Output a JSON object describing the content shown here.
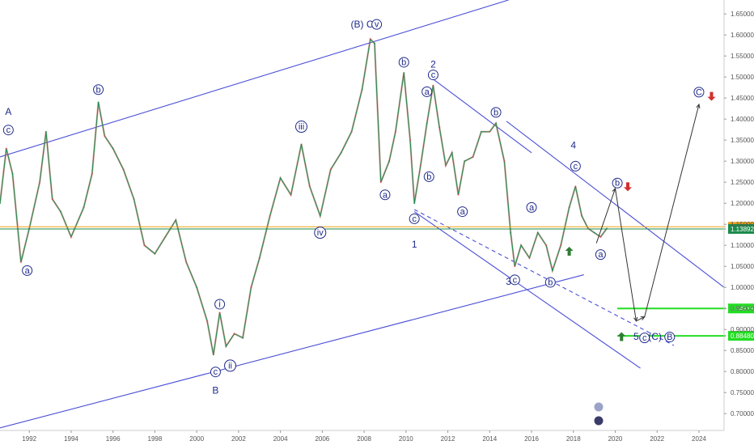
{
  "chart_data": {
    "type": "line",
    "title": "",
    "xlabel": "",
    "ylabel": "",
    "xlim": [
      1990.6,
      2025.2
    ],
    "ylim": [
      0.66,
      1.683
    ],
    "x_ticks": [
      "1992",
      "1994",
      "1996",
      "1998",
      "2000",
      "2002",
      "2004",
      "2006",
      "2008",
      "2010",
      "2012",
      "2014",
      "2016",
      "2018",
      "2020",
      "2022",
      "2024"
    ],
    "y_ticks": [
      "1.65000",
      "1.60000",
      "1.55000",
      "1.50000",
      "1.45000",
      "1.40000",
      "1.35000",
      "1.30000",
      "1.25000",
      "1.20000",
      "1.15000",
      "1.10000",
      "1.05000",
      "1.00000",
      "0.95000",
      "0.90000",
      "0.85000",
      "0.80000",
      "0.75000",
      "0.70000"
    ],
    "price_series": {
      "name": "",
      "points": [
        [
          1990.6,
          1.2
        ],
        [
          1990.9,
          1.33
        ],
        [
          1991.2,
          1.27
        ],
        [
          1991.6,
          1.06
        ],
        [
          1992.0,
          1.14
        ],
        [
          1992.5,
          1.25
        ],
        [
          1992.8,
          1.37
        ],
        [
          1993.1,
          1.21
        ],
        [
          1993.5,
          1.18
        ],
        [
          1994.0,
          1.12
        ],
        [
          1994.6,
          1.19
        ],
        [
          1995.0,
          1.27
        ],
        [
          1995.3,
          1.44
        ],
        [
          1995.6,
          1.36
        ],
        [
          1996.0,
          1.33
        ],
        [
          1996.5,
          1.28
        ],
        [
          1997.0,
          1.21
        ],
        [
          1997.5,
          1.1
        ],
        [
          1998.0,
          1.08
        ],
        [
          1998.5,
          1.12
        ],
        [
          1999.0,
          1.16
        ],
        [
          1999.5,
          1.06
        ],
        [
          2000.0,
          1.0
        ],
        [
          2000.5,
          0.92
        ],
        [
          2000.8,
          0.84
        ],
        [
          2001.1,
          0.94
        ],
        [
          2001.4,
          0.86
        ],
        [
          2001.8,
          0.89
        ],
        [
          2002.2,
          0.88
        ],
        [
          2002.6,
          1.0
        ],
        [
          2003.0,
          1.07
        ],
        [
          2003.5,
          1.17
        ],
        [
          2004.0,
          1.26
        ],
        [
          2004.5,
          1.22
        ],
        [
          2005.0,
          1.34
        ],
        [
          2005.4,
          1.24
        ],
        [
          2005.9,
          1.17
        ],
        [
          2006.4,
          1.28
        ],
        [
          2006.9,
          1.32
        ],
        [
          2007.4,
          1.37
        ],
        [
          2007.9,
          1.47
        ],
        [
          2008.3,
          1.59
        ],
        [
          2008.5,
          1.58
        ],
        [
          2008.8,
          1.25
        ],
        [
          2009.2,
          1.3
        ],
        [
          2009.5,
          1.37
        ],
        [
          2009.9,
          1.51
        ],
        [
          2010.2,
          1.35
        ],
        [
          2010.4,
          1.2
        ],
        [
          2010.7,
          1.29
        ],
        [
          2011.0,
          1.39
        ],
        [
          2011.3,
          1.48
        ],
        [
          2011.6,
          1.38
        ],
        [
          2011.9,
          1.29
        ],
        [
          2012.2,
          1.32
        ],
        [
          2012.5,
          1.22
        ],
        [
          2012.8,
          1.3
        ],
        [
          2013.2,
          1.31
        ],
        [
          2013.6,
          1.37
        ],
        [
          2014.0,
          1.37
        ],
        [
          2014.3,
          1.39
        ],
        [
          2014.7,
          1.3
        ],
        [
          2015.0,
          1.13
        ],
        [
          2015.2,
          1.05
        ],
        [
          2015.5,
          1.1
        ],
        [
          2015.9,
          1.07
        ],
        [
          2016.3,
          1.13
        ],
        [
          2016.7,
          1.1
        ],
        [
          2017.0,
          1.04
        ],
        [
          2017.4,
          1.1
        ],
        [
          2017.8,
          1.19
        ],
        [
          2018.1,
          1.24
        ],
        [
          2018.4,
          1.17
        ],
        [
          2018.7,
          1.14
        ],
        [
          2019.0,
          1.13
        ],
        [
          2019.3,
          1.12
        ],
        [
          2019.6,
          1.14
        ]
      ]
    },
    "trend_lines": [
      {
        "name": "upper-channel",
        "from": [
          1990.6,
          1.31
        ],
        "to": [
          2014.9,
          1.683
        ]
      },
      {
        "name": "lower-channel",
        "from": [
          1990.6,
          0.666
        ],
        "to": [
          2018.5,
          1.03
        ]
      },
      {
        "name": "descending-top",
        "from": [
          2011.3,
          1.495
        ],
        "to": [
          2016.0,
          1.32
        ]
      },
      {
        "name": "descending-mid",
        "from": [
          2014.8,
          1.395
        ],
        "to": [
          2025.2,
          1.0
        ]
      },
      {
        "name": "descending-bottom",
        "from": [
          2010.4,
          1.18
        ],
        "to": [
          2021.2,
          0.808
        ]
      },
      {
        "name": "dashed-projection",
        "from": [
          2010.4,
          1.185
        ],
        "to": [
          2022.8,
          0.862
        ]
      }
    ],
    "horizontal_levels": [
      {
        "value": 1.144,
        "label": "1.14400",
        "color": "#f0a010"
      },
      {
        "value": 1.13892,
        "label": "1.13892",
        "color": "#1b8a4a"
      },
      {
        "value": 0.94989,
        "label": "0.94989",
        "color": "#22dd22"
      },
      {
        "value": 0.8848,
        "label": "0.88480",
        "color": "#22dd22"
      }
    ],
    "projection_path": [
      [
        2019.1,
        1.105
      ],
      [
        2020.0,
        1.235
      ],
      [
        2021.0,
        0.92
      ],
      [
        2021.4,
        0.93
      ],
      [
        2024.0,
        1.435
      ]
    ],
    "wave_labels": [
      {
        "text": "A",
        "x": 1991.0,
        "y": 1.418
      },
      {
        "text": "c",
        "x": 1991.0,
        "y": 1.374,
        "circle": true
      },
      {
        "text": "a",
        "x": 1991.9,
        "y": 1.04,
        "circle": true
      },
      {
        "text": "b",
        "x": 1995.3,
        "y": 1.47,
        "circle": true
      },
      {
        "text": "i",
        "x": 2001.1,
        "y": 0.96,
        "circle": true
      },
      {
        "text": "c",
        "x": 2000.9,
        "y": 0.799,
        "circle": true
      },
      {
        "text": "ii",
        "x": 2001.6,
        "y": 0.814,
        "circle": true
      },
      {
        "text": "B",
        "x": 2000.9,
        "y": 0.755
      },
      {
        "text": "iii",
        "x": 2005.0,
        "y": 1.382,
        "circle": true
      },
      {
        "text": "iv",
        "x": 2005.9,
        "y": 1.13,
        "circle": true
      },
      {
        "text": "(B) C",
        "x": 2007.9,
        "y": 1.625
      },
      {
        "text": "v",
        "x": 2008.6,
        "y": 1.625,
        "circle": true
      },
      {
        "text": "a",
        "x": 2009.0,
        "y": 1.22,
        "circle": true
      },
      {
        "text": "b",
        "x": 2009.9,
        "y": 1.535,
        "circle": true
      },
      {
        "text": "c",
        "x": 2010.4,
        "y": 1.163,
        "circle": true
      },
      {
        "text": "1",
        "x": 2010.4,
        "y": 1.102
      },
      {
        "text": "a",
        "x": 2011.0,
        "y": 1.465,
        "circle": true
      },
      {
        "text": "b",
        "x": 2011.1,
        "y": 1.263,
        "circle": true
      },
      {
        "text": "2",
        "x": 2011.3,
        "y": 1.53
      },
      {
        "text": "c",
        "x": 2011.3,
        "y": 1.505,
        "circle": true
      },
      {
        "text": "a",
        "x": 2012.7,
        "y": 1.18,
        "circle": true
      },
      {
        "text": "b",
        "x": 2014.3,
        "y": 1.416,
        "circle": true
      },
      {
        "text": "3",
        "x": 2014.9,
        "y": 1.014
      },
      {
        "text": "c",
        "x": 2015.2,
        "y": 1.018,
        "circle": true
      },
      {
        "text": "a",
        "x": 2016.0,
        "y": 1.19,
        "circle": true
      },
      {
        "text": "b",
        "x": 2016.9,
        "y": 1.012,
        "circle": true
      },
      {
        "text": "4",
        "x": 2018.0,
        "y": 1.338
      },
      {
        "text": "c",
        "x": 2018.1,
        "y": 1.288,
        "circle": true
      },
      {
        "text": "b",
        "x": 2020.1,
        "y": 1.248,
        "circle": true
      },
      {
        "text": "a",
        "x": 2019.3,
        "y": 1.078,
        "circle": true
      },
      {
        "text": "5",
        "x": 2021.0,
        "y": 0.883
      },
      {
        "text": "c",
        "x": 2021.4,
        "y": 0.88,
        "circle": true
      },
      {
        "text": "(C)",
        "x": 2021.9,
        "y": 0.883
      },
      {
        "text": "B",
        "x": 2022.6,
        "y": 0.882,
        "circle": true
      },
      {
        "text": "C",
        "x": 2024.0,
        "y": 1.464,
        "circle": true
      }
    ],
    "arrows": [
      {
        "direction": "up",
        "color": "#2e7d32",
        "x": 2017.8,
        "y": 1.085
      },
      {
        "direction": "down",
        "color": "#d32f2f",
        "x": 2020.6,
        "y": 1.24
      },
      {
        "direction": "up",
        "color": "#2e7d32",
        "x": 2020.3,
        "y": 0.882
      },
      {
        "direction": "down",
        "color": "#d32f2f",
        "x": 2024.6,
        "y": 1.455
      }
    ],
    "grid": false
  }
}
